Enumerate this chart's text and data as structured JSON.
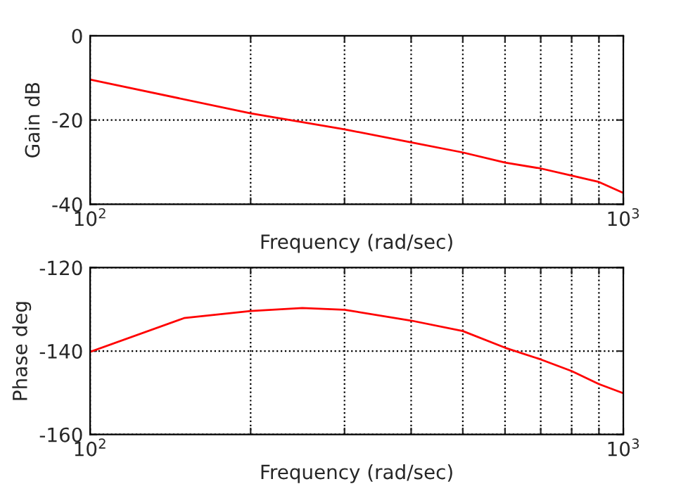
{
  "chart_data": [
    {
      "type": "line",
      "xlabel": "Frequency (rad/sec)",
      "ylabel": "Gain dB",
      "log": "x",
      "grid": true,
      "legend": false,
      "x": [
        100,
        200,
        300,
        400,
        500,
        600,
        700,
        800,
        900,
        1000
      ],
      "series": [
        {
          "color": "#ff0000",
          "values": [
            -10.4,
            -18.4,
            -22.2,
            -25.3,
            -27.7,
            -30.1,
            -31.5,
            -33.2,
            -34.7,
            -37.3
          ]
        }
      ],
      "xlim": [
        100,
        1000
      ],
      "ylim": [
        -40,
        0
      ],
      "xticks": [
        {
          "value": 100,
          "label": "10$^{2}$"
        },
        {
          "value": 200,
          "label": null
        },
        {
          "value": 300,
          "label": null
        },
        {
          "value": 400,
          "label": null
        },
        {
          "value": 500,
          "label": null
        },
        {
          "value": 600,
          "label": null
        },
        {
          "value": 700,
          "label": null
        },
        {
          "value": 800,
          "label": null
        },
        {
          "value": 900,
          "label": null
        },
        {
          "value": 1000,
          "label": "10$^{3}$"
        }
      ],
      "yticks": [
        -40,
        -20,
        0
      ]
    },
    {
      "type": "line",
      "xlabel": "Frequency (rad/sec)",
      "ylabel": "Phase deg",
      "log": "x",
      "grid": true,
      "legend": false,
      "x": [
        100,
        150,
        200,
        250,
        300,
        400,
        500,
        600,
        700,
        800,
        900,
        1000
      ],
      "series": [
        {
          "color": "#ff0000",
          "values": [
            -140.2,
            -132.1,
            -130.4,
            -129.7,
            -130.1,
            -132.7,
            -135.2,
            -139.2,
            -142,
            -144.8,
            -147.9,
            -150.1
          ]
        }
      ],
      "xlim": [
        100,
        1000
      ],
      "ylim": [
        -160,
        -120
      ],
      "xticks": [
        {
          "value": 100,
          "label": "10$^{2}$"
        },
        {
          "value": 200,
          "label": null
        },
        {
          "value": 300,
          "label": null
        },
        {
          "value": 400,
          "label": null
        },
        {
          "value": 500,
          "label": null
        },
        {
          "value": 600,
          "label": null
        },
        {
          "value": 700,
          "label": null
        },
        {
          "value": 800,
          "label": null
        },
        {
          "value": 900,
          "label": null
        },
        {
          "value": 1000,
          "label": "10$^{3}$"
        }
      ],
      "yticks": [
        -160,
        -140,
        -120
      ]
    }
  ]
}
